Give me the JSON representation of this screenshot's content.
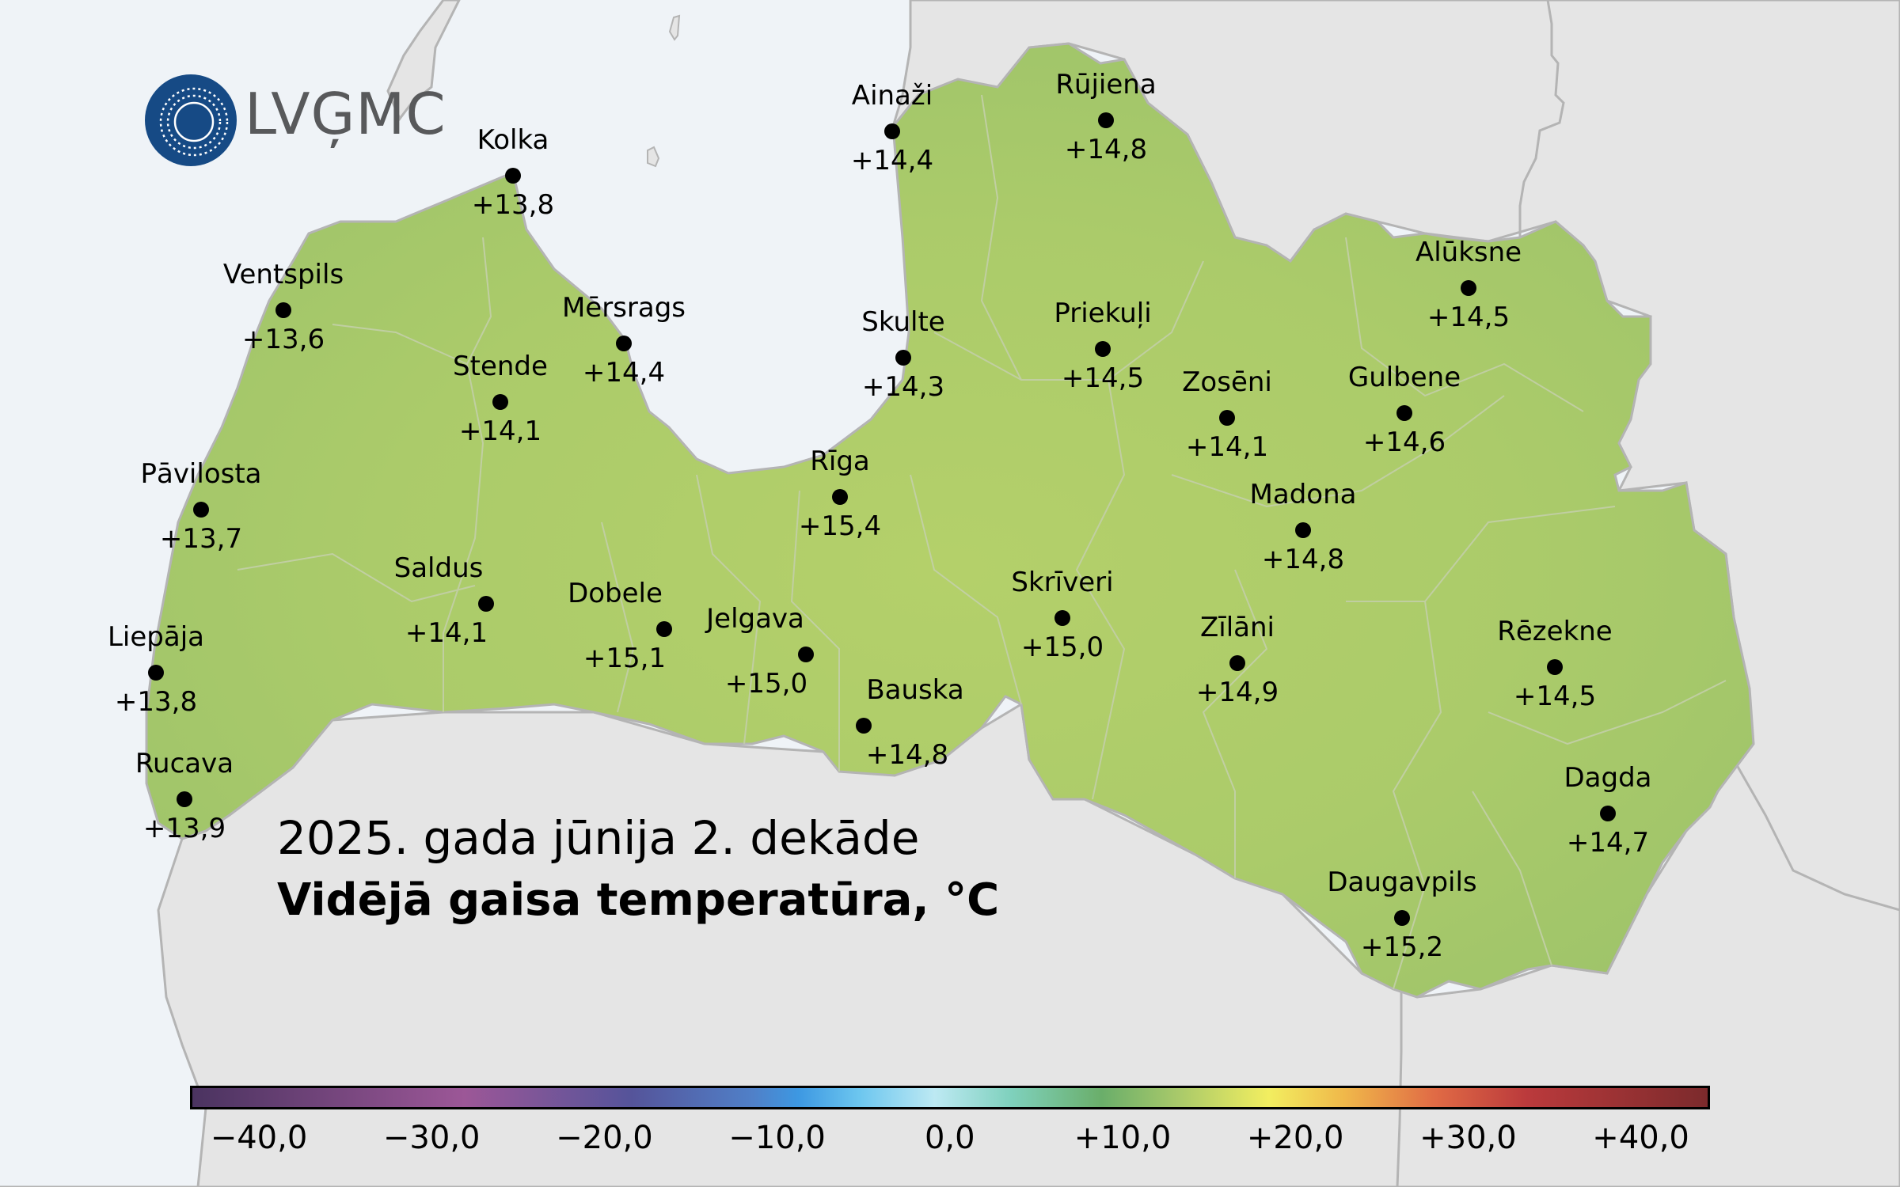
{
  "map": {
    "organization": "LVĢMC",
    "title_line1": "2025. gada jūnija 2. dekāde",
    "title_line2": "Vidējā gaisa temperatūra, °C",
    "colors": {
      "sea": "#eff3f7",
      "neighbor_land": "#e5e5e5",
      "border": "#b4b4b4",
      "latvia_fill": "#a8c96a",
      "logo_blue": "#164a85",
      "logo_text": "#58595b"
    },
    "stations": [
      {
        "name": "Kolka",
        "value": "+13,8"
      },
      {
        "name": "Ventspils",
        "value": "+13,6"
      },
      {
        "name": "Mērsrags",
        "value": "+14,4"
      },
      {
        "name": "Stende",
        "value": "+14,1"
      },
      {
        "name": "Pāvilosta",
        "value": "+13,7"
      },
      {
        "name": "Saldus",
        "value": "+14,1"
      },
      {
        "name": "Dobele",
        "value": "+15,1"
      },
      {
        "name": "Liepāja",
        "value": "+13,8"
      },
      {
        "name": "Rucava",
        "value": "+13,9"
      },
      {
        "name": "Jelgava",
        "value": "+15,0"
      },
      {
        "name": "Rīga",
        "value": "+15,4"
      },
      {
        "name": "Bauska",
        "value": "+14,8"
      },
      {
        "name": "Skrīveri",
        "value": "+15,0"
      },
      {
        "name": "Ainaži",
        "value": "+14,4"
      },
      {
        "name": "Rūjiena",
        "value": "+14,8"
      },
      {
        "name": "Skulte",
        "value": "+14,3"
      },
      {
        "name": "Priekuļi",
        "value": "+14,5"
      },
      {
        "name": "Zosēni",
        "value": "+14,1"
      },
      {
        "name": "Gulbene",
        "value": "+14,6"
      },
      {
        "name": "Alūksne",
        "value": "+14,5"
      },
      {
        "name": "Madona",
        "value": "+14,8"
      },
      {
        "name": "Zīlāni",
        "value": "+14,9"
      },
      {
        "name": "Rēzekne",
        "value": "+14,5"
      },
      {
        "name": "Dagda",
        "value": "+14,7"
      },
      {
        "name": "Daugavpils",
        "value": "+15,2"
      }
    ],
    "colorbar": {
      "ticks": [
        "−40,0",
        "−30,0",
        "−20,0",
        "−10,0",
        "0,0",
        "+10,0",
        "+20,0",
        "+30,0",
        "+40,0"
      ],
      "range": [
        -44,
        44
      ],
      "stops": [
        "#4a3360",
        "#9c5797",
        "#55549a",
        "#4e82cd",
        "#3d98e2",
        "#6cc6ef",
        "#bde9f3",
        "#7fd1bd",
        "#6aae6a",
        "#a8c96a",
        "#f2ee60",
        "#f0b84a",
        "#e06a45",
        "#bb3a3c",
        "#7b2a2c"
      ]
    }
  },
  "chart_data": {
    "type": "map",
    "title": "2025. gada jūnija 2. dekāde — Vidējā gaisa temperatūra, °C",
    "units": "°C",
    "points": [
      {
        "station": "Kolka",
        "value": 13.8
      },
      {
        "station": "Ventspils",
        "value": 13.6
      },
      {
        "station": "Mērsrags",
        "value": 14.4
      },
      {
        "station": "Stende",
        "value": 14.1
      },
      {
        "station": "Pāvilosta",
        "value": 13.7
      },
      {
        "station": "Saldus",
        "value": 14.1
      },
      {
        "station": "Dobele",
        "value": 15.1
      },
      {
        "station": "Liepāja",
        "value": 13.8
      },
      {
        "station": "Rucava",
        "value": 13.9
      },
      {
        "station": "Jelgava",
        "value": 15.0
      },
      {
        "station": "Rīga",
        "value": 15.4
      },
      {
        "station": "Bauska",
        "value": 14.8
      },
      {
        "station": "Skrīveri",
        "value": 15.0
      },
      {
        "station": "Ainaži",
        "value": 14.4
      },
      {
        "station": "Rūjiena",
        "value": 14.8
      },
      {
        "station": "Skulte",
        "value": 14.3
      },
      {
        "station": "Priekuļi",
        "value": 14.5
      },
      {
        "station": "Zosēni",
        "value": 14.1
      },
      {
        "station": "Gulbene",
        "value": 14.6
      },
      {
        "station": "Alūksne",
        "value": 14.5
      },
      {
        "station": "Madona",
        "value": 14.8
      },
      {
        "station": "Zīlāni",
        "value": 14.9
      },
      {
        "station": "Rēzekne",
        "value": 14.5
      },
      {
        "station": "Dagda",
        "value": 14.7
      },
      {
        "station": "Daugavpils",
        "value": 15.2
      }
    ],
    "legend": {
      "type": "colorbar",
      "ticks": [
        -40,
        -30,
        -20,
        -10,
        0,
        10,
        20,
        30,
        40
      ],
      "tick_labels": [
        "−40,0",
        "−30,0",
        "−20,0",
        "−10,0",
        "0,0",
        "+10,0",
        "+20,0",
        "+30,0",
        "+40,0"
      ],
      "position": "bottom"
    }
  }
}
